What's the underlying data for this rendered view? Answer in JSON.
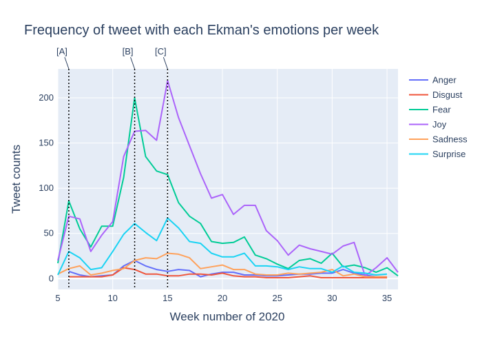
{
  "chart_data": {
    "type": "line",
    "title": "Frequency of tweet with each Ekman's emotions per week",
    "xlabel": "Week number of 2020",
    "ylabel": "Tweet counts",
    "xlim": [
      5,
      36
    ],
    "ylim": [
      -12,
      232
    ],
    "x_ticks": [
      5,
      10,
      15,
      20,
      25,
      30,
      35
    ],
    "y_ticks": [
      0,
      50,
      100,
      150,
      200
    ],
    "grid": true,
    "legend_position": "right",
    "plot_background": "#e5ecf6",
    "x": [
      5,
      6,
      7,
      8,
      9,
      10,
      11,
      12,
      13,
      14,
      15,
      16,
      17,
      18,
      19,
      20,
      21,
      22,
      23,
      24,
      25,
      26,
      27,
      28,
      29,
      30,
      31,
      32,
      33,
      34,
      35,
      36
    ],
    "series": [
      {
        "name": "Anger",
        "color": "#636efa",
        "values": [
          null,
          8,
          4,
          2,
          3,
          4,
          14,
          20,
          14,
          10,
          8,
          10,
          9,
          2,
          5,
          7,
          7,
          4,
          4,
          3,
          3,
          4,
          5,
          5,
          6,
          6,
          10,
          6,
          4,
          2,
          2,
          null
        ]
      },
      {
        "name": "Disgust",
        "color": "#ef553b",
        "values": [
          null,
          2,
          2,
          2,
          2,
          4,
          12,
          10,
          5,
          5,
          3,
          3,
          5,
          5,
          4,
          6,
          3,
          2,
          2,
          1,
          1,
          1,
          2,
          3,
          1,
          1,
          1,
          1,
          1,
          1,
          1,
          null
        ]
      },
      {
        "name": "Fear",
        "color": "#00cc96",
        "values": [
          17,
          86,
          55,
          35,
          58,
          58,
          112,
          200,
          135,
          119,
          115,
          84,
          69,
          61,
          41,
          39,
          40,
          46,
          26,
          22,
          16,
          11,
          20,
          22,
          17,
          28,
          13,
          15,
          12,
          7,
          12,
          3
        ]
      },
      {
        "name": "Joy",
        "color": "#ab63fa",
        "values": [
          20,
          69,
          66,
          30,
          48,
          63,
          135,
          163,
          164,
          153,
          219,
          178,
          147,
          116,
          89,
          93,
          71,
          81,
          81,
          53,
          42,
          26,
          37,
          33,
          30,
          27,
          36,
          40,
          3,
          12,
          23,
          7
        ]
      },
      {
        "name": "Sadness",
        "color": "#ffa15a",
        "values": [
          5,
          11,
          14,
          4,
          6,
          9,
          11,
          20,
          23,
          22,
          28,
          27,
          23,
          11,
          13,
          15,
          10,
          10,
          5,
          4,
          4,
          6,
          5,
          6,
          7,
          10,
          3,
          5,
          2,
          2,
          2,
          null
        ]
      },
      {
        "name": "Surprise",
        "color": "#19d3f3",
        "values": [
          4,
          30,
          23,
          10,
          12,
          30,
          49,
          61,
          51,
          42,
          67,
          56,
          41,
          39,
          28,
          24,
          24,
          28,
          14,
          14,
          13,
          10,
          13,
          11,
          11,
          7,
          14,
          7,
          6,
          4,
          5,
          null
        ]
      }
    ],
    "annotations": [
      {
        "label": "[A]",
        "x": 6
      },
      {
        "label": "[B]",
        "x": 12
      },
      {
        "label": "[C]",
        "x": 15
      }
    ]
  }
}
